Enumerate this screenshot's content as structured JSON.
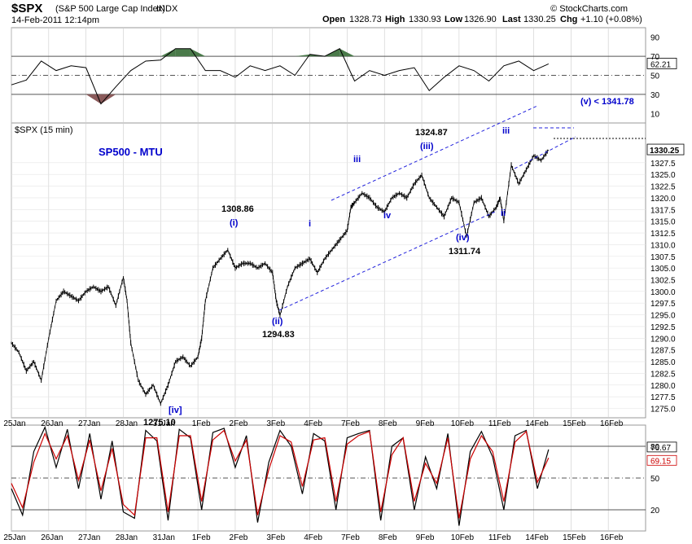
{
  "header": {
    "symbol": "$SPX",
    "description": "(S&P 500 Large Cap Index)",
    "exchange": "INDX",
    "datetime": "14-Feb-2011 12:14pm",
    "open_label": "Open",
    "open": "1328.73",
    "high_label": "High",
    "high": "1330.93",
    "low_label": "Low",
    "low": "1326.90",
    "last_label": "Last",
    "last": "1330.25",
    "chg_label": "Chg",
    "chg": "+1.10 (+0.08%)",
    "credit": "© StockCharts.com"
  },
  "colors": {
    "price": "#000000",
    "annotation": "#0000cc",
    "rsi_overbought_fill": "#4a7a4a",
    "rsi_oversold_fill": "#8a5a5a",
    "stoch_fast": "#000000",
    "stoch_slow": "#cc0000",
    "grid": "#cccccc",
    "reference": "#555555"
  },
  "chart_data": [
    {
      "type": "line",
      "panel": "rsi",
      "ylim": [
        0,
        100
      ],
      "yticks": [
        10,
        30,
        50,
        70,
        90
      ],
      "reference_lines": [
        30,
        50,
        70
      ],
      "last_value": "62.21",
      "x": [
        0,
        0.4,
        0.8,
        1.2,
        1.6,
        2,
        2.4,
        2.8,
        3.2,
        3.6,
        4,
        4.4,
        4.8,
        5.2,
        5.6,
        6,
        6.4,
        6.8,
        7.2,
        7.6,
        8,
        8.4,
        8.8,
        9.2,
        9.6,
        10,
        10.4,
        10.8,
        11.2,
        11.6,
        12,
        12.4,
        12.8,
        13.2,
        13.6,
        14,
        14.4
      ],
      "values": [
        40,
        45,
        65,
        55,
        60,
        58,
        20,
        38,
        55,
        65,
        66,
        78,
        78,
        55,
        55,
        48,
        60,
        55,
        60,
        50,
        72,
        70,
        78,
        44,
        55,
        50,
        55,
        58,
        34,
        48,
        60,
        55,
        44,
        60,
        65,
        55,
        62
      ]
    },
    {
      "type": "line",
      "panel": "price",
      "title": "$SPX (15 min)",
      "ylim": [
        1273,
        1336
      ],
      "yticks": [
        1275.0,
        1277.5,
        1280.0,
        1282.5,
        1285.0,
        1287.5,
        1290.0,
        1292.5,
        1295.0,
        1297.5,
        1300.0,
        1302.5,
        1305.0,
        1307.5,
        1310.0,
        1312.5,
        1315.0,
        1317.5,
        1320.0,
        1322.5,
        1325.0,
        1327.5
      ],
      "xticks": [
        "25Jan",
        "26Jan",
        "27Jan",
        "28Jan",
        "31Jan",
        "1Feb",
        "2Feb",
        "3Feb",
        "4Feb",
        "7Feb",
        "8Feb",
        "9Feb",
        "10Feb",
        "11Feb",
        "14Feb",
        "15Feb",
        "16Feb"
      ],
      "last_value": "1330.25",
      "x": [
        0,
        0.2,
        0.4,
        0.6,
        0.8,
        1.0,
        1.2,
        1.4,
        1.6,
        1.8,
        2.0,
        2.2,
        2.4,
        2.6,
        2.8,
        3.0,
        3.1,
        3.2,
        3.4,
        3.6,
        3.8,
        4.0,
        4.2,
        4.4,
        4.6,
        4.8,
        5.0,
        5.1,
        5.2,
        5.4,
        5.6,
        5.8,
        6.0,
        6.2,
        6.4,
        6.6,
        6.8,
        7.0,
        7.1,
        7.2,
        7.4,
        7.6,
        7.8,
        8.0,
        8.2,
        8.4,
        8.6,
        8.8,
        9.0,
        9.1,
        9.2,
        9.4,
        9.6,
        9.8,
        10.0,
        10.2,
        10.4,
        10.6,
        10.8,
        11.0,
        11.2,
        11.4,
        11.6,
        11.8,
        12.0,
        12.2,
        12.4,
        12.6,
        12.8,
        13.0,
        13.1,
        13.2,
        13.4,
        13.6,
        13.8,
        14.0,
        14.2,
        14.4
      ],
      "values": [
        1289,
        1287,
        1283,
        1285,
        1281,
        1290,
        1298,
        1300,
        1299,
        1298,
        1300,
        1301,
        1300,
        1301,
        1297,
        1303,
        1298,
        1289,
        1281,
        1278,
        1280,
        1276,
        1280,
        1285,
        1286,
        1284,
        1286,
        1290,
        1298,
        1305,
        1307,
        1308.86,
        1305,
        1306,
        1306,
        1305,
        1306,
        1304,
        1298,
        1294.83,
        1301,
        1305,
        1306,
        1307,
        1304,
        1307,
        1309,
        1311,
        1313,
        1318,
        1319,
        1321,
        1320,
        1318,
        1317,
        1320,
        1321,
        1320,
        1323,
        1324.87,
        1320,
        1318,
        1316,
        1320,
        1319,
        1311.74,
        1319,
        1320,
        1316,
        1318,
        1320,
        1315,
        1327,
        1323,
        1326,
        1329,
        1328,
        1330.25
      ]
    },
    {
      "type": "line",
      "panel": "stochastic",
      "ylim": [
        0,
        100
      ],
      "yticks": [
        20,
        50,
        80
      ],
      "reference_lines": [
        20,
        50,
        80
      ],
      "series": [
        {
          "last_value": "76.67",
          "x": [
            0,
            0.3,
            0.6,
            0.9,
            1.2,
            1.5,
            1.8,
            2.1,
            2.4,
            2.7,
            3.0,
            3.3,
            3.6,
            3.9,
            4.2,
            4.5,
            4.8,
            5.1,
            5.4,
            5.7,
            6.0,
            6.3,
            6.6,
            6.9,
            7.2,
            7.5,
            7.8,
            8.1,
            8.4,
            8.7,
            9.0,
            9.3,
            9.6,
            9.9,
            10.2,
            10.5,
            10.8,
            11.1,
            11.4,
            11.7,
            12.0,
            12.3,
            12.6,
            12.9,
            13.2,
            13.5,
            13.8,
            14.1,
            14.4
          ],
          "values": [
            40,
            15,
            75,
            98,
            60,
            96,
            40,
            92,
            30,
            85,
            18,
            12,
            95,
            85,
            10,
            96,
            88,
            20,
            93,
            97,
            60,
            90,
            8,
            65,
            95,
            80,
            35,
            92,
            85,
            20,
            88,
            92,
            95,
            10,
            80,
            88,
            20,
            70,
            40,
            92,
            5,
            75,
            94,
            70,
            20,
            90,
            95,
            40,
            77
          ]
        },
        {
          "last_value": "69.15",
          "x": [
            0,
            0.3,
            0.6,
            0.9,
            1.2,
            1.5,
            1.8,
            2.1,
            2.4,
            2.7,
            3.0,
            3.3,
            3.6,
            3.9,
            4.2,
            4.5,
            4.8,
            5.1,
            5.4,
            5.7,
            6.0,
            6.3,
            6.6,
            6.9,
            7.2,
            7.5,
            7.8,
            8.1,
            8.4,
            8.7,
            9.0,
            9.3,
            9.6,
            9.9,
            10.2,
            10.5,
            10.8,
            11.1,
            11.4,
            11.7,
            12.0,
            12.3,
            12.6,
            12.9,
            13.2,
            13.5,
            13.8,
            14.1,
            14.4
          ],
          "values": [
            45,
            22,
            65,
            92,
            68,
            90,
            48,
            86,
            38,
            78,
            25,
            15,
            88,
            88,
            18,
            90,
            90,
            28,
            86,
            95,
            66,
            86,
            15,
            58,
            90,
            84,
            42,
            86,
            88,
            28,
            82,
            90,
            94,
            18,
            72,
            88,
            28,
            64,
            45,
            88,
            12,
            68,
            90,
            75,
            28,
            84,
            94,
            46,
            69
          ]
        }
      ],
      "xticks": [
        "26Jan",
        "27Jan",
        "28Jan",
        "31Jan",
        "1Feb",
        "2Feb",
        "3Feb",
        "4Feb",
        "7Feb",
        "8Feb",
        "9Feb",
        "10Feb",
        "11Feb",
        "14Feb",
        "15Feb",
        "16Feb"
      ],
      "x_start_label": "25Jan"
    }
  ],
  "annotations": {
    "chart_label": "SP500 - MTU",
    "target": "(v) < 1341.78",
    "wave_labels": [
      "(i)",
      "(ii)",
      "(iii)",
      "(iv)",
      "i",
      "ii",
      "iii",
      "iv",
      "iii",
      "[iv]"
    ],
    "price_labels": [
      "1308.86",
      "1294.83",
      "1324.87",
      "1311.74",
      "1275.10"
    ]
  }
}
